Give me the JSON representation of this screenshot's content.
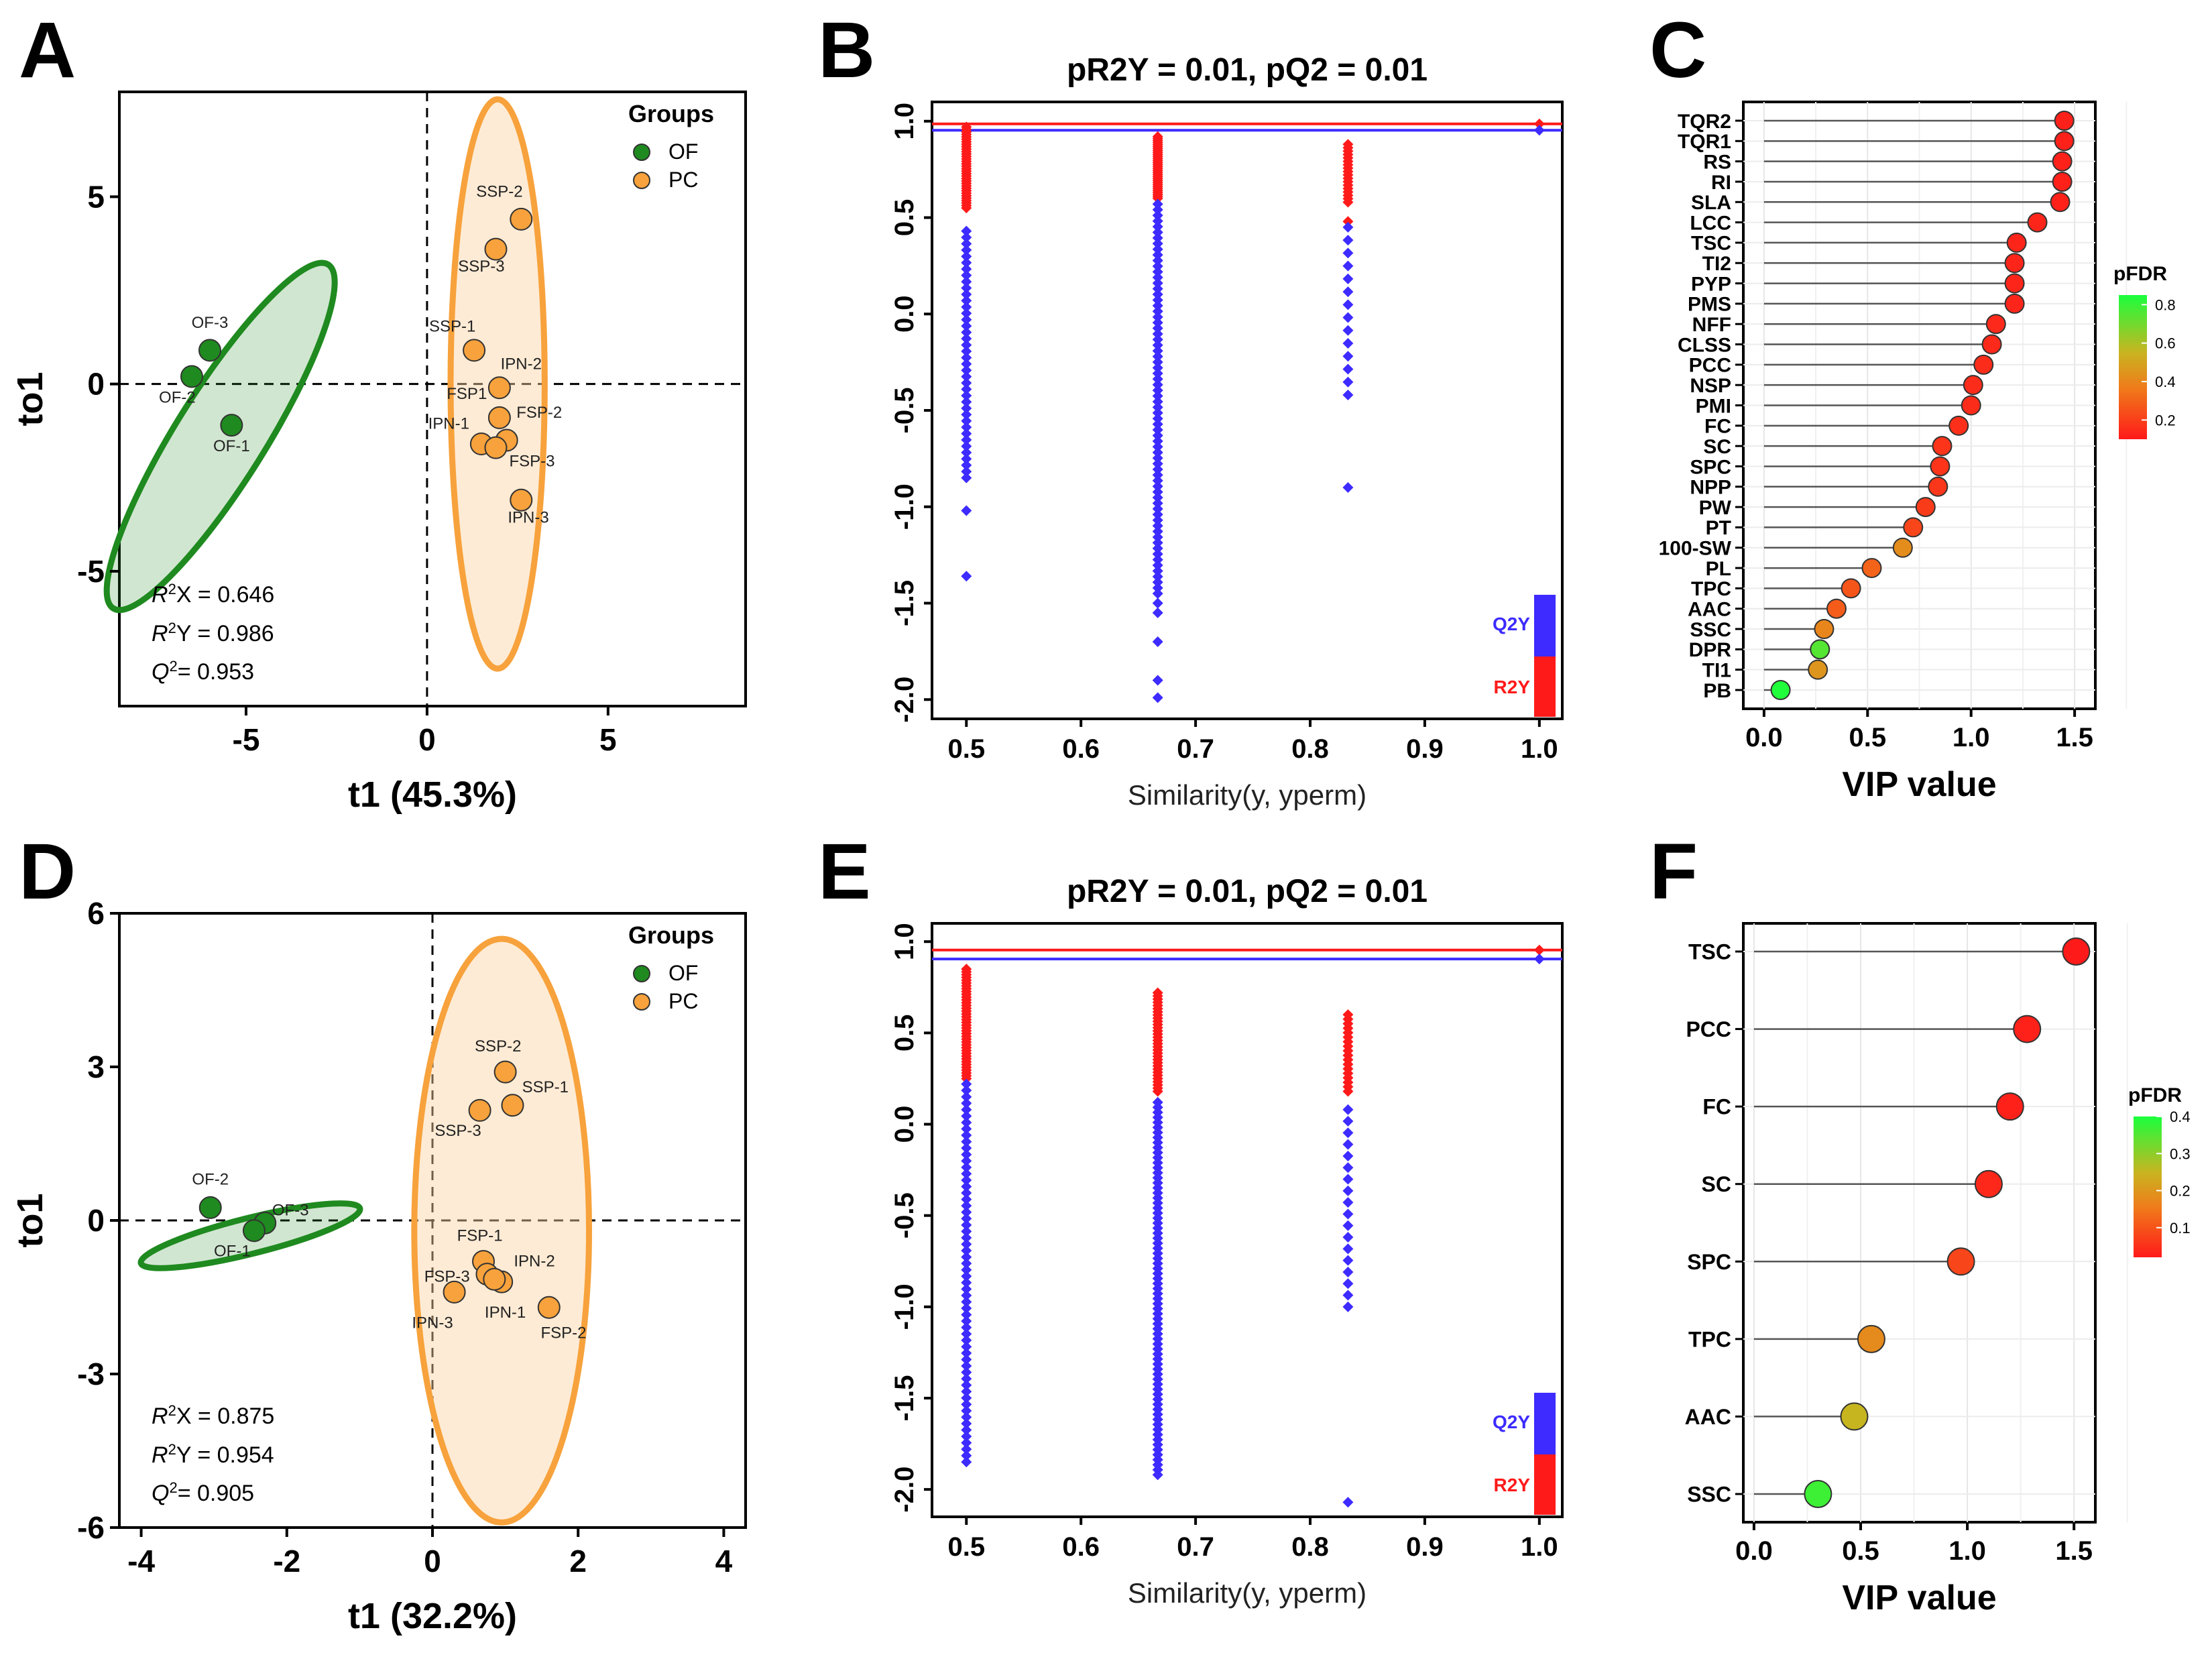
{
  "colors": {
    "of": "#1f8a1f",
    "of_fill": "#2e8b2e",
    "pc": "#f7a23c",
    "pc_fill": "#fcd3a1",
    "r2": "#ff1a1a",
    "q2": "#3d2bff",
    "axis": "#000000"
  },
  "chart_data": [
    {
      "panel": "A",
      "type": "scatter",
      "title": "",
      "xlabel": "t1 (45.3%)",
      "ylabel": "to1",
      "xlim": [
        -8.5,
        8.8
      ],
      "ylim": [
        -8.6,
        7.8
      ],
      "xticks": [
        -5,
        0,
        5
      ],
      "xtick_labels": [
        "-5",
        "0",
        "5"
      ],
      "yticks": [
        -5,
        0,
        5
      ],
      "ytick_labels": [
        "-5",
        "0",
        "5"
      ],
      "legend": {
        "title": "Groups",
        "items": [
          "OF",
          "PC"
        ],
        "position": "top-right"
      },
      "stats": [
        "X = 0.646",
        "Y = 0.986",
        "= 0.953"
      ],
      "points": [
        {
          "label": "OF-3",
          "group": "OF",
          "x": -6.0,
          "y": 0.9,
          "lx": -6.0,
          "ly": 1.5
        },
        {
          "label": "OF-2",
          "group": "OF",
          "x": -6.5,
          "y": 0.2,
          "lx": -6.9,
          "ly": -0.5
        },
        {
          "label": "OF-1",
          "group": "OF",
          "x": -5.4,
          "y": -1.1,
          "lx": -5.4,
          "ly": -1.8
        },
        {
          "label": "SSP-2",
          "group": "PC",
          "x": 2.6,
          "y": 4.4,
          "lx": 2.0,
          "ly": 5.0
        },
        {
          "label": "SSP-3",
          "group": "PC",
          "x": 1.9,
          "y": 3.6,
          "lx": 1.5,
          "ly": 3.0
        },
        {
          "label": "SSP-1",
          "group": "PC",
          "x": 1.3,
          "y": 0.9,
          "lx": 0.7,
          "ly": 1.4
        },
        {
          "label": "IPN-2",
          "group": "PC",
          "x": 2.0,
          "y": -0.1,
          "lx": 2.6,
          "ly": 0.4
        },
        {
          "label": "FSP1",
          "group": "PC",
          "x": 2.0,
          "y": -0.9,
          "lx": 1.1,
          "ly": -0.4
        },
        {
          "label": "FSP-2",
          "group": "PC",
          "x": 2.2,
          "y": -1.5,
          "lx": 3.1,
          "ly": -0.9
        },
        {
          "label": "IPN-1",
          "group": "PC",
          "x": 1.5,
          "y": -1.6,
          "lx": 0.6,
          "ly": -1.2
        },
        {
          "label": "FSP-3",
          "group": "PC",
          "x": 1.9,
          "y": -1.7,
          "lx": 2.9,
          "ly": -2.2
        },
        {
          "label": "IPN-3",
          "group": "PC",
          "x": 2.6,
          "y": -3.1,
          "lx": 2.8,
          "ly": -3.7
        }
      ],
      "ellipses": [
        {
          "group": "OF",
          "cx": -5.7,
          "cy": -1.4,
          "rx": 5.6,
          "ry": 1.2,
          "angle": -58
        },
        {
          "group": "PC",
          "cx": 1.95,
          "cy": 0.0,
          "rx": 1.3,
          "ry": 7.6,
          "angle": 0
        }
      ]
    },
    {
      "panel": "B",
      "type": "scatter",
      "title": "pR2Y = 0.01, pQ2 = 0.01",
      "xlabel": "Similarity(y, yperm)",
      "ylabel": "",
      "xlim": [
        0.47,
        1.02
      ],
      "ylim": [
        -2.1,
        1.1
      ],
      "xticks": [
        0.5,
        0.6,
        0.7,
        0.8,
        0.9,
        1.0
      ],
      "xtick_labels": [
        "0.5",
        "0.6",
        "0.7",
        "0.8",
        "0.9",
        "1.0"
      ],
      "yticks": [
        -2.0,
        -1.5,
        -1.0,
        -0.5,
        0.0,
        0.5,
        1.0
      ],
      "ytick_labels": [
        "-2.0",
        "-1.5",
        "-1.0",
        "-0.5",
        "0.0",
        "0.5",
        "1.0"
      ],
      "r2_line": 0.986,
      "q2_line": 0.953,
      "legend_items": [
        "Q2Y",
        "R2Y"
      ],
      "series": [
        {
          "name": "R2Y",
          "x": 0.5,
          "min": 0.55,
          "max": 0.97,
          "n": 34
        },
        {
          "name": "Q2Y",
          "x": 0.5,
          "min": -0.85,
          "max": 0.43,
          "n": 40,
          "extra": [
            -1.02,
            -1.36
          ]
        },
        {
          "name": "R2Y",
          "x": 0.667,
          "min": 0.6,
          "max": 0.92,
          "n": 32
        },
        {
          "name": "Q2Y",
          "x": 0.667,
          "min": -1.45,
          "max": 0.57,
          "n": 70,
          "extra": [
            -1.5,
            -1.55,
            -1.7,
            -1.9,
            -1.99
          ]
        },
        {
          "name": "R2Y",
          "x": 0.833,
          "min": 0.58,
          "max": 0.88,
          "n": 18,
          "extra": [
            0.48
          ]
        },
        {
          "name": "Q2Y",
          "x": 0.833,
          "min": -0.42,
          "max": 0.45,
          "n": 14,
          "extra": [
            -0.9
          ]
        },
        {
          "name": "R2Y",
          "x": 1.0,
          "min": 0.986,
          "max": 0.986,
          "n": 1
        },
        {
          "name": "Q2Y",
          "x": 1.0,
          "min": 0.953,
          "max": 0.953,
          "n": 1
        }
      ]
    },
    {
      "panel": "C",
      "type": "lollipop",
      "xlabel": "VIP value",
      "xlim": [
        -0.1,
        1.6
      ],
      "xticks": [
        0.0,
        0.5,
        1.0,
        1.5
      ],
      "xtick_labels": [
        "0.0",
        "0.5",
        "1.0",
        "1.5"
      ],
      "colorbar": {
        "title": "pFDR",
        "ticks": [
          "0.8",
          "0.6",
          "0.4",
          "0.2"
        ],
        "tick_values": [
          0.8,
          0.6,
          0.4,
          0.2
        ],
        "range": [
          0.1,
          0.85
        ]
      },
      "categories": [
        "TQR2",
        "TQR1",
        "RS",
        "RI",
        "SLA",
        "LCC",
        "TSC",
        "TI2",
        "PYP",
        "PMS",
        "NFF",
        "CLSS",
        "PCC",
        "NSP",
        "PMI",
        "FC",
        "SC",
        "SPC",
        "NPP",
        "PW",
        "PT",
        "100-SW",
        "PL",
        "TPC",
        "AAC",
        "SSC",
        "DPR",
        "TI1",
        "PB"
      ],
      "values": [
        1.45,
        1.45,
        1.44,
        1.44,
        1.43,
        1.32,
        1.22,
        1.21,
        1.21,
        1.21,
        1.12,
        1.1,
        1.06,
        1.01,
        1.0,
        0.94,
        0.86,
        0.85,
        0.84,
        0.78,
        0.72,
        0.67,
        0.52,
        0.42,
        0.35,
        0.29,
        0.27,
        0.26,
        0.08
      ],
      "pfdr": [
        0.12,
        0.12,
        0.12,
        0.12,
        0.12,
        0.13,
        0.13,
        0.13,
        0.13,
        0.13,
        0.14,
        0.14,
        0.15,
        0.15,
        0.15,
        0.16,
        0.17,
        0.17,
        0.18,
        0.19,
        0.22,
        0.42,
        0.3,
        0.26,
        0.28,
        0.4,
        0.75,
        0.45,
        0.84
      ]
    },
    {
      "panel": "D",
      "type": "scatter",
      "xlabel": "t1 (32.2%)",
      "ylabel": "to1",
      "xlim": [
        -4.3,
        4.3
      ],
      "ylim": [
        -6.0,
        6.0
      ],
      "xticks": [
        -4,
        -2,
        0,
        2,
        4
      ],
      "xtick_labels": [
        "-4",
        "-2",
        "0",
        "2",
        "4"
      ],
      "yticks": [
        -6,
        -3,
        0,
        3,
        6
      ],
      "ytick_labels": [
        "-6",
        "-3",
        "0",
        "3",
        "6"
      ],
      "legend": {
        "title": "Groups",
        "items": [
          "OF",
          "PC"
        ],
        "position": "top-right"
      },
      "stats": [
        "X = 0.875",
        "Y = 0.954",
        "= 0.905"
      ],
      "points": [
        {
          "label": "OF-2",
          "group": "OF",
          "x": -3.05,
          "y": 0.25,
          "lx": -3.05,
          "ly": 0.7
        },
        {
          "label": "OF-3",
          "group": "OF",
          "x": -2.3,
          "y": -0.05,
          "lx": -1.95,
          "ly": 0.1
        },
        {
          "label": "OF-1",
          "group": "OF",
          "x": -2.45,
          "y": -0.2,
          "lx": -2.75,
          "ly": -0.7
        },
        {
          "label": "SSP-2",
          "group": "PC",
          "x": 1.0,
          "y": 2.9,
          "lx": 0.9,
          "ly": 3.3
        },
        {
          "label": "SSP-1",
          "group": "PC",
          "x": 1.1,
          "y": 2.25,
          "lx": 1.55,
          "ly": 2.5
        },
        {
          "label": "SSP-3",
          "group": "PC",
          "x": 0.65,
          "y": 2.15,
          "lx": 0.35,
          "ly": 1.65
        },
        {
          "label": "FSP-1",
          "group": "PC",
          "x": 0.7,
          "y": -0.8,
          "lx": 0.65,
          "ly": -0.4
        },
        {
          "label": "IPN-2",
          "group": "PC",
          "x": 0.95,
          "y": -1.2,
          "lx": 1.4,
          "ly": -0.9
        },
        {
          "label": "FSP-3",
          "group": "PC",
          "x": 0.75,
          "y": -1.05,
          "lx": 0.2,
          "ly": -1.2
        },
        {
          "label": "IPN-1",
          "group": "PC",
          "x": 0.85,
          "y": -1.15,
          "lx": 1.0,
          "ly": -1.9
        },
        {
          "label": "IPN-3",
          "group": "PC",
          "x": 0.3,
          "y": -1.4,
          "lx": 0.0,
          "ly": -2.1
        },
        {
          "label": "FSP-2",
          "group": "PC",
          "x": 1.6,
          "y": -1.7,
          "lx": 1.8,
          "ly": -2.3
        }
      ],
      "ellipses": [
        {
          "group": "OF",
          "cx": -2.5,
          "cy": -0.3,
          "rx": 1.55,
          "ry": 0.35,
          "angle": -14
        },
        {
          "group": "PC",
          "cx": 0.95,
          "cy": -0.2,
          "rx": 1.2,
          "ry": 5.7,
          "angle": 0
        }
      ]
    },
    {
      "panel": "E",
      "type": "scatter",
      "title": "pR2Y = 0.01, pQ2 = 0.01",
      "xlabel": "Similarity(y, yperm)",
      "xlim": [
        0.47,
        1.02
      ],
      "ylim": [
        -2.15,
        1.1
      ],
      "xticks": [
        0.5,
        0.6,
        0.7,
        0.8,
        0.9,
        1.0
      ],
      "xtick_labels": [
        "0.5",
        "0.6",
        "0.7",
        "0.8",
        "0.9",
        "1.0"
      ],
      "yticks": [
        -2.0,
        -1.5,
        -1.0,
        -0.5,
        0.0,
        0.5,
        1.0
      ],
      "ytick_labels": [
        "-2.0",
        "-1.5",
        "-1.0",
        "-0.5",
        "0.0",
        "0.5",
        "1.0"
      ],
      "r2_line": 0.954,
      "q2_line": 0.905,
      "legend_items": [
        "Q2Y",
        "R2Y"
      ],
      "series": [
        {
          "name": "R2Y",
          "x": 0.5,
          "min": 0.25,
          "max": 0.85,
          "n": 40
        },
        {
          "name": "Q2Y",
          "x": 0.5,
          "min": -1.85,
          "max": 0.22,
          "n": 60
        },
        {
          "name": "R2Y",
          "x": 0.667,
          "min": 0.18,
          "max": 0.72,
          "n": 32
        },
        {
          "name": "Q2Y",
          "x": 0.667,
          "min": -1.92,
          "max": 0.12,
          "n": 75
        },
        {
          "name": "R2Y",
          "x": 0.833,
          "min": 0.18,
          "max": 0.6,
          "n": 18
        },
        {
          "name": "Q2Y",
          "x": 0.833,
          "min": -1.0,
          "max": 0.08,
          "n": 18,
          "extra": [
            -2.07
          ]
        },
        {
          "name": "R2Y",
          "x": 1.0,
          "min": 0.954,
          "max": 0.954,
          "n": 1
        },
        {
          "name": "Q2Y",
          "x": 1.0,
          "min": 0.905,
          "max": 0.905,
          "n": 1
        }
      ]
    },
    {
      "panel": "F",
      "type": "lollipop",
      "xlabel": "VIP value",
      "xlim": [
        -0.05,
        1.6
      ],
      "xticks": [
        0.0,
        0.5,
        1.0,
        1.5
      ],
      "xtick_labels": [
        "0.0",
        "0.5",
        "1.0",
        "1.5"
      ],
      "colorbar": {
        "title": "pFDR",
        "ticks": [
          "0.4",
          "0.3",
          "0.2",
          "0.1"
        ],
        "tick_values": [
          0.4,
          0.3,
          0.2,
          0.1
        ],
        "range": [
          0.02,
          0.4
        ]
      },
      "categories": [
        "TSC",
        "PCC",
        "FC",
        "SC",
        "SPC",
        "TPC",
        "AAC",
        "SSC"
      ],
      "values": [
        1.51,
        1.28,
        1.2,
        1.1,
        0.97,
        0.55,
        0.47,
        0.3
      ],
      "pfdr": [
        0.02,
        0.03,
        0.03,
        0.04,
        0.08,
        0.18,
        0.25,
        0.37
      ]
    }
  ],
  "panel_letters": [
    "A",
    "B",
    "C",
    "D",
    "E",
    "F"
  ]
}
